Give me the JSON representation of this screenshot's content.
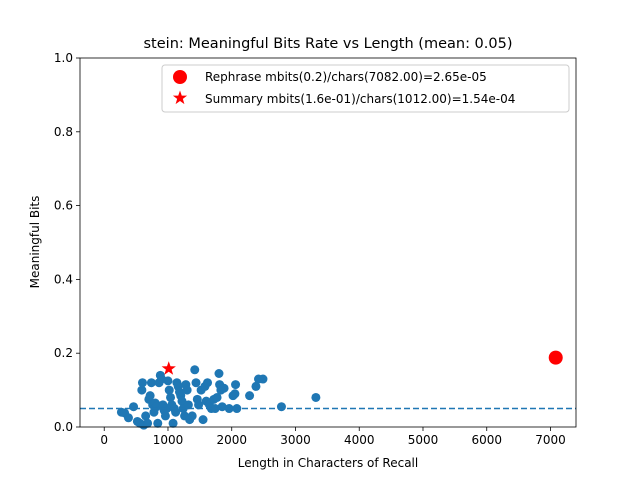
{
  "chart_data": {
    "type": "scatter",
    "title": "stein: Meaningful Bits Rate vs Length (mean: 0.05)",
    "xlabel": "Length in Characters of Recall",
    "ylabel": "Meaningful Bits",
    "xlim": [
      -380,
      7400
    ],
    "ylim": [
      0,
      1
    ],
    "x_ticks": [
      "0",
      "1000",
      "2000",
      "3000",
      "4000",
      "5000",
      "6000",
      "7000"
    ],
    "y_ticks": [
      "0.0",
      "0.2",
      "0.4",
      "0.6",
      "0.8",
      "1.0"
    ],
    "mean_line": 0.05,
    "mean_line_color": "#1f77b4",
    "legend_position": "top-right",
    "legend": [
      {
        "label": "Rephrase mbits(0.2)/chars(7082.00)=2.65e-05",
        "marker": "circle",
        "color": "#ff0000"
      },
      {
        "label": "Summary mbits(1.6e-01)/chars(1012.00)=1.54e-04",
        "marker": "star",
        "color": "#ff0000"
      }
    ],
    "series": [
      {
        "color": "#1f77b4",
        "points": [
          [
            270,
            0.04
          ],
          [
            320,
            0.038
          ],
          [
            380,
            0.025
          ],
          [
            460,
            0.055
          ],
          [
            520,
            0.015
          ],
          [
            560,
            0.01
          ],
          [
            590,
            0.1
          ],
          [
            600,
            0.12
          ],
          [
            620,
            0.005
          ],
          [
            650,
            0.03
          ],
          [
            680,
            0.01
          ],
          [
            700,
            0.075
          ],
          [
            720,
            0.085
          ],
          [
            740,
            0.12
          ],
          [
            760,
            0.06
          ],
          [
            780,
            0.04
          ],
          [
            800,
            0.065
          ],
          [
            820,
            0.055
          ],
          [
            840,
            0.01
          ],
          [
            860,
            0.12
          ],
          [
            880,
            0.14
          ],
          [
            900,
            0.13
          ],
          [
            920,
            0.06
          ],
          [
            940,
            0.045
          ],
          [
            960,
            0.03
          ],
          [
            980,
            0.05
          ],
          [
            1000,
            0.125
          ],
          [
            1020,
            0.1
          ],
          [
            1040,
            0.08
          ],
          [
            1060,
            0.06
          ],
          [
            1080,
            0.01
          ],
          [
            1100,
            0.05
          ],
          [
            1120,
            0.04
          ],
          [
            1140,
            0.12
          ],
          [
            1160,
            0.11
          ],
          [
            1180,
            0.095
          ],
          [
            1200,
            0.085
          ],
          [
            1220,
            0.07
          ],
          [
            1240,
            0.05
          ],
          [
            1260,
            0.03
          ],
          [
            1280,
            0.115
          ],
          [
            1300,
            0.1
          ],
          [
            1320,
            0.06
          ],
          [
            1340,
            0.02
          ],
          [
            1380,
            0.03
          ],
          [
            1420,
            0.155
          ],
          [
            1440,
            0.12
          ],
          [
            1460,
            0.075
          ],
          [
            1480,
            0.06
          ],
          [
            1520,
            0.1
          ],
          [
            1550,
            0.02
          ],
          [
            1580,
            0.11
          ],
          [
            1600,
            0.07
          ],
          [
            1620,
            0.12
          ],
          [
            1650,
            0.06
          ],
          [
            1680,
            0.05
          ],
          [
            1720,
            0.075
          ],
          [
            1740,
            0.05
          ],
          [
            1770,
            0.08
          ],
          [
            1800,
            0.145
          ],
          [
            1810,
            0.115
          ],
          [
            1830,
            0.1
          ],
          [
            1850,
            0.055
          ],
          [
            1880,
            0.105
          ],
          [
            1960,
            0.05
          ],
          [
            2020,
            0.085
          ],
          [
            2050,
            0.09
          ],
          [
            2060,
            0.115
          ],
          [
            2080,
            0.05
          ],
          [
            2280,
            0.085
          ],
          [
            2380,
            0.11
          ],
          [
            2420,
            0.13
          ],
          [
            2490,
            0.13
          ],
          [
            2780,
            0.055
          ],
          [
            3320,
            0.08
          ]
        ]
      },
      {
        "name": "Rephrase mbits(0.2)/chars(7082.00)=2.65e-05",
        "marker": "circle",
        "color": "#ff0000",
        "points": [
          [
            7082,
            0.188
          ]
        ]
      },
      {
        "name": "Summary mbits(1.6e-01)/chars(1012.00)=1.54e-04",
        "marker": "star",
        "color": "#ff0000",
        "points": [
          [
            1012,
            0.158
          ]
        ]
      }
    ]
  }
}
